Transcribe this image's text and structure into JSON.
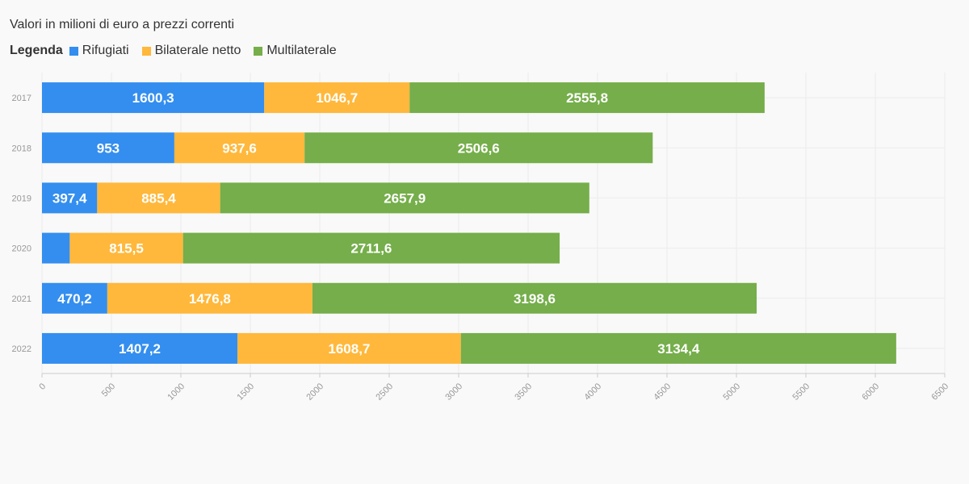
{
  "chart_data": {
    "type": "bar",
    "orientation": "horizontal",
    "stacked": true,
    "subtitle": "Valori in milioni di euro a prezzi correnti",
    "legend_title": "Legenda",
    "legend_position": "top-left",
    "categories": [
      "2017",
      "2018",
      "2019",
      "2020",
      "2021",
      "2022"
    ],
    "series": [
      {
        "name": "Rifugiati",
        "color": "#338eef",
        "values": [
          1600.3,
          953,
          397.4,
          200,
          470.2,
          1407.2
        ],
        "labels": [
          "1600,3",
          "953",
          "397,4",
          "",
          "470,2",
          "1407,2"
        ]
      },
      {
        "name": "Bilaterale netto",
        "color": "#ffb83b",
        "values": [
          1046.7,
          937.6,
          885.4,
          815.5,
          1476.8,
          1608.7
        ],
        "labels": [
          "1046,7",
          "937,6",
          "885,4",
          "815,5",
          "1476,8",
          "1608,7"
        ]
      },
      {
        "name": "Multilaterale",
        "color": "#75ae4a",
        "values": [
          2555.8,
          2506.6,
          2657.9,
          2711.6,
          3198.6,
          3134.4
        ],
        "labels": [
          "2555,8",
          "2506,6",
          "2657,9",
          "2711,6",
          "3198,6",
          "3134,4"
        ]
      }
    ],
    "xlim": [
      0,
      6500
    ],
    "x_ticks": [
      "0",
      "500",
      "1000",
      "1500",
      "2000",
      "2500",
      "3000",
      "3500",
      "4000",
      "4500",
      "5000",
      "5500",
      "6000",
      "6500"
    ],
    "grid": true
  }
}
